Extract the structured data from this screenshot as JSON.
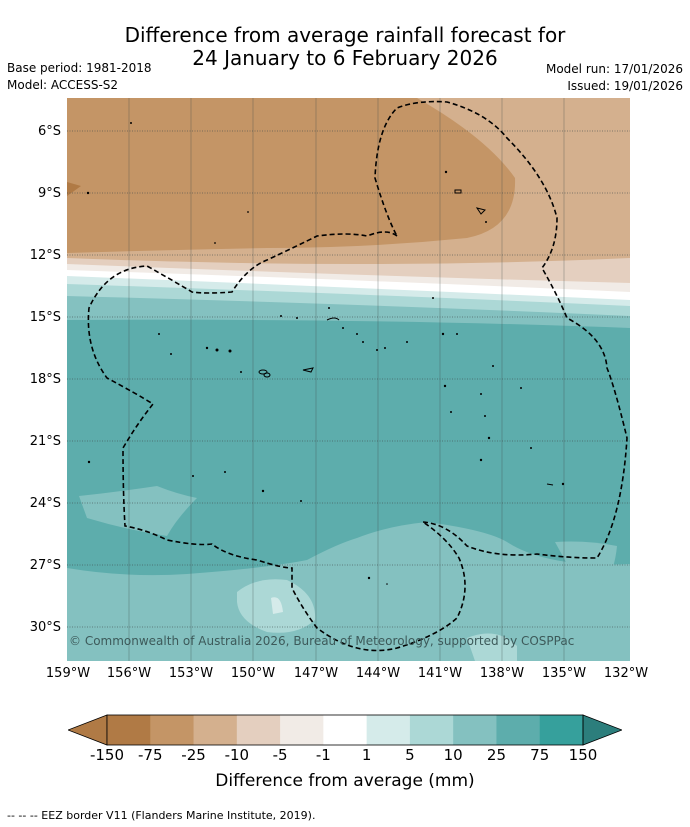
{
  "title_line1": "Difference from average rainfall forecast for",
  "title_line2": "24 January to 6 February 2026",
  "meta_left": [
    "Base period: 1981-2018",
    "Model: ACCESS-S2"
  ],
  "meta_right": [
    "Model run: 17/01/2026",
    "Issued: 19/01/2026"
  ],
  "lat_labels": [
    "6°S",
    "9°S",
    "12°S",
    "15°S",
    "18°S",
    "21°S",
    "24°S",
    "27°S",
    "30°S"
  ],
  "lon_labels": [
    "159°W",
    "156°W",
    "153°W",
    "150°W",
    "147°W",
    "144°W",
    "141°W",
    "138°W",
    "135°W",
    "132°W"
  ],
  "copyright": "© Commonwealth of Australia 2026, Bureau of Meteorology, supported by COSPPac",
  "legend": {
    "title": "Difference from average (mm)",
    "ticks": [
      "-150",
      "-75",
      "-25",
      "-10",
      "-5",
      "-1",
      "1",
      "5",
      "10",
      "25",
      "75",
      "150"
    ],
    "colors": [
      "#b07a45",
      "#c49566",
      "#d4b08e",
      "#e4cfbf",
      "#f1ebe6",
      "#ffffff",
      "#d5ebea",
      "#acd8d6",
      "#84c1c0",
      "#5dadac",
      "#36a09c",
      "#2c7e7c"
    ]
  },
  "footnote": "--  --  -- EEZ border V11 (Flanders Marine Institute, 2019)."
}
